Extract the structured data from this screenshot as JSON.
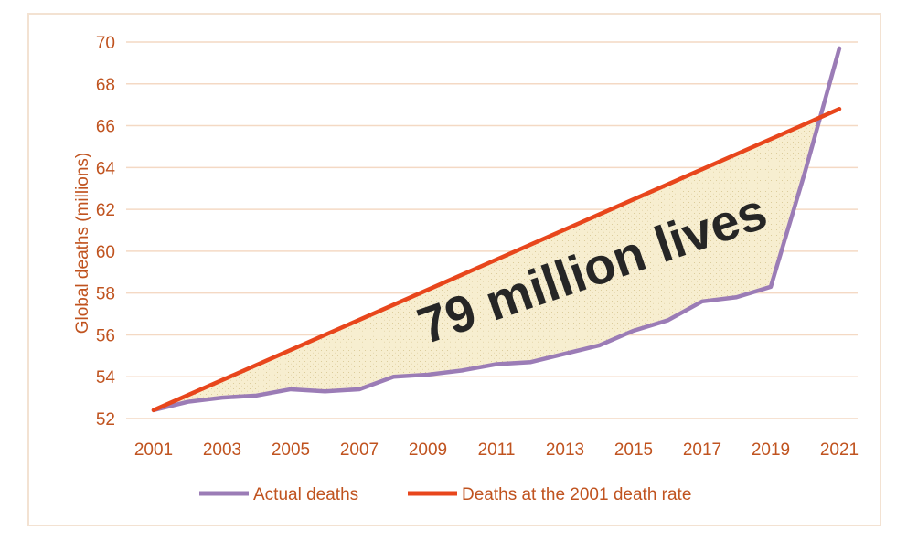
{
  "chart_data": {
    "type": "line",
    "title": "",
    "xlabel": "",
    "ylabel": "Global deaths (millions)",
    "xlim": [
      2001,
      2021
    ],
    "ylim": [
      52,
      70
    ],
    "x_ticks": [
      2001,
      2003,
      2005,
      2007,
      2009,
      2011,
      2013,
      2015,
      2017,
      2019,
      2021
    ],
    "y_ticks": [
      52,
      54,
      56,
      58,
      60,
      62,
      64,
      66,
      68,
      70
    ],
    "grid": "horizontal",
    "legend_position": "bottom",
    "series": [
      {
        "name": "Actual deaths",
        "color": "#9b7cb6",
        "x": [
          2001,
          2002,
          2003,
          2004,
          2005,
          2006,
          2007,
          2008,
          2009,
          2010,
          2011,
          2012,
          2013,
          2014,
          2015,
          2016,
          2017,
          2018,
          2019,
          2020,
          2021
        ],
        "values": [
          52.4,
          52.8,
          53.0,
          53.1,
          53.4,
          53.3,
          53.4,
          54.0,
          54.1,
          54.3,
          54.6,
          54.7,
          55.1,
          55.5,
          56.2,
          56.7,
          57.6,
          57.8,
          58.3,
          63.8,
          69.7
        ]
      },
      {
        "name": "Deaths at the 2001 death rate",
        "color": "#e8461c",
        "x": [
          2001,
          2021
        ],
        "values": [
          52.4,
          66.8
        ]
      }
    ],
    "annotation": {
      "text": "79 million lives",
      "fill_color": "#f6eccb"
    }
  }
}
